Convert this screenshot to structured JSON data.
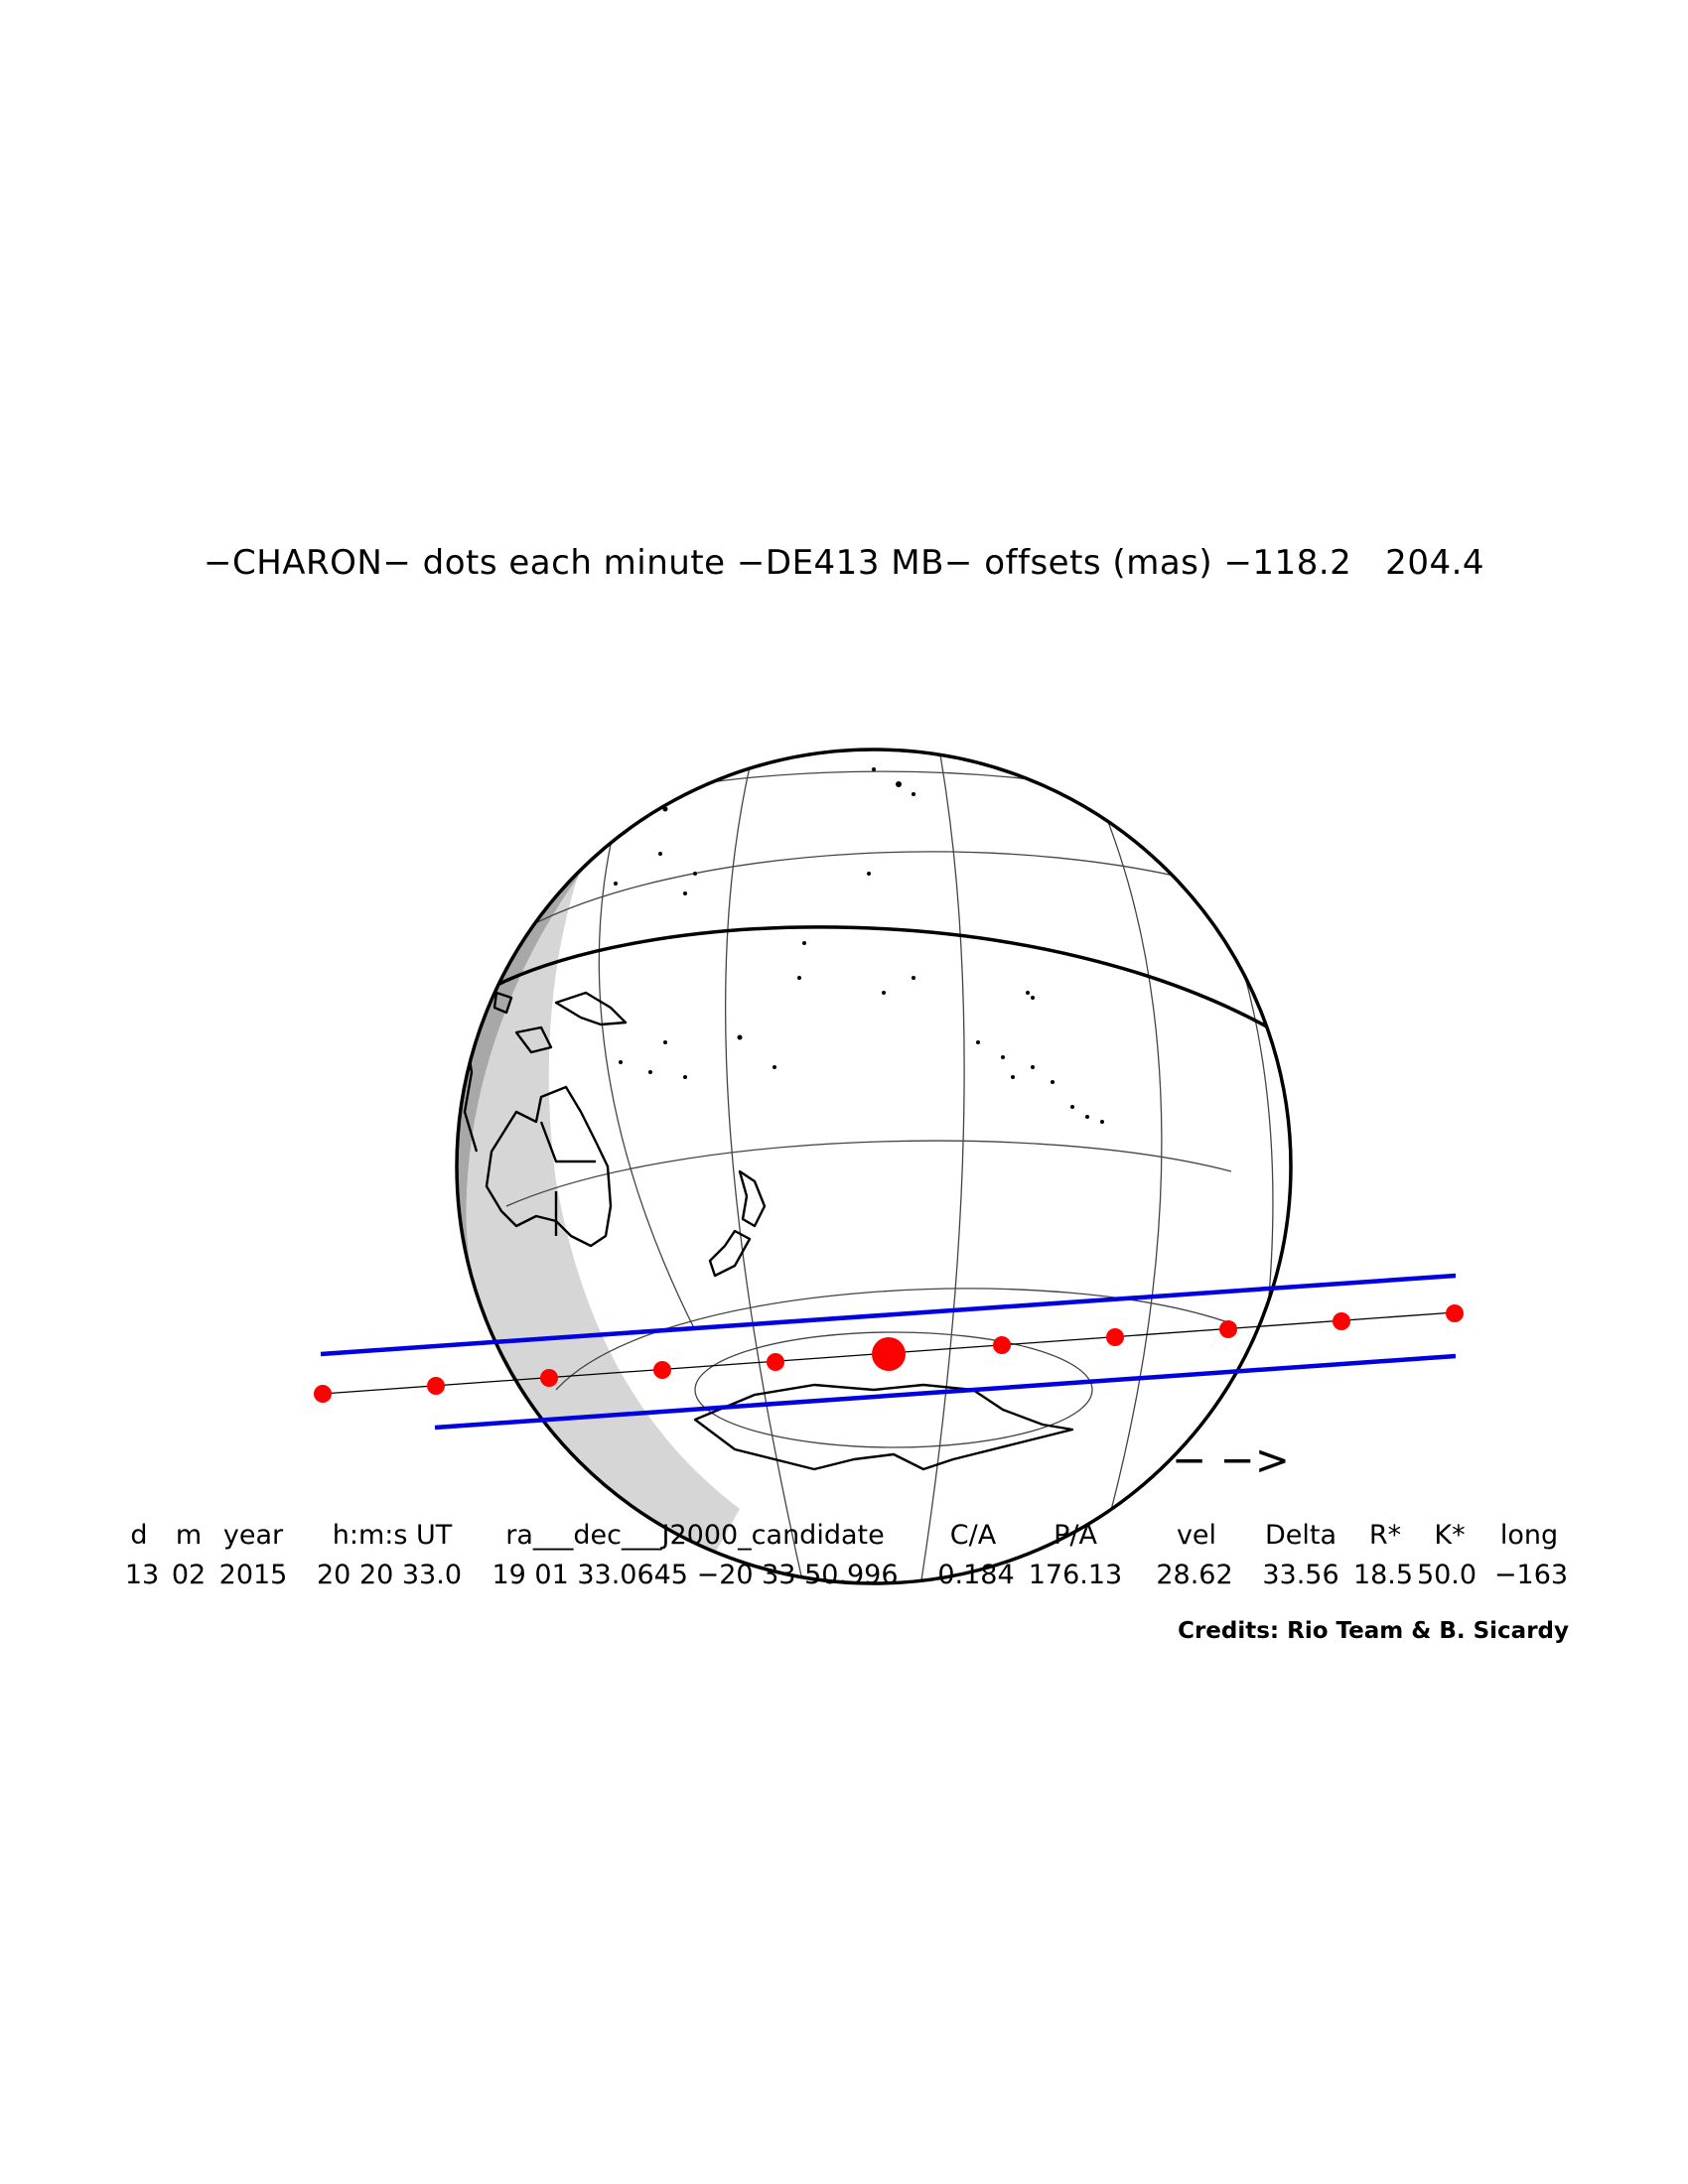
{
  "title": "−CHARON− dots each minute −DE413 MB− offsets (mas) −118.2   204.4",
  "direction_arrow": "− −>",
  "table": {
    "headers": [
      "d",
      "m",
      "year",
      "h:m:s UT",
      "ra___dec___J2000_candidate",
      "C/A",
      "P/A",
      "vel",
      "Delta",
      "R*",
      "K*",
      "long"
    ],
    "values": [
      "13",
      "02",
      "2015",
      "20 20 33.0",
      "19 01 33.0645 −20 33 50.996",
      "0.184",
      "176.13",
      "28.62",
      "33.56",
      "18.5",
      "50.0",
      "−163"
    ]
  },
  "credits": "Credits: Rio Team & B. Sicardy",
  "colors": {
    "path_limits": "#0000e0",
    "minute_dots": "#ff0000",
    "night_shade": "#d6d6d6",
    "twilight_shade": "#a8a8a8",
    "coastline": "#000000",
    "graticule": "#444444"
  },
  "icons": [
    "globe-map",
    "direction-arrow-icon"
  ]
}
